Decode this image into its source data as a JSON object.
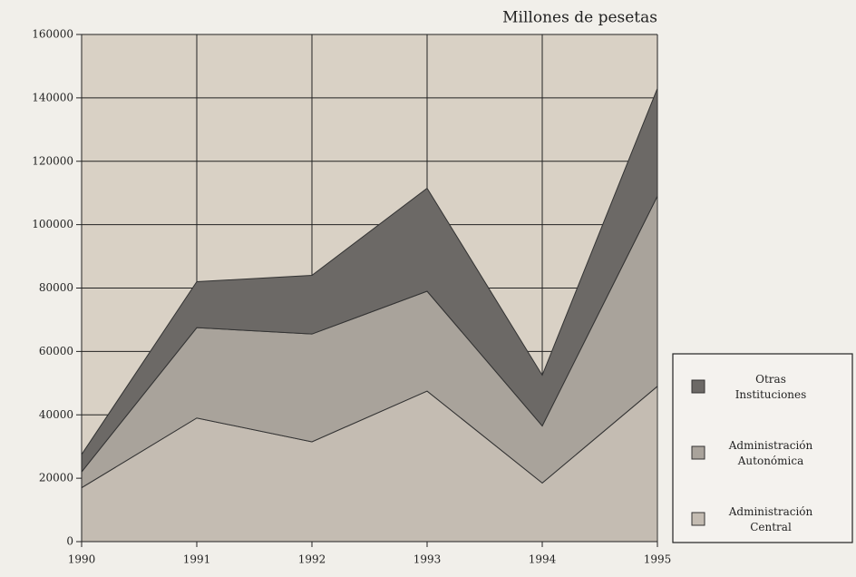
{
  "chart_data": {
    "type": "stacked_area",
    "title": "Millones de pesetas",
    "x": [
      1990,
      1991,
      1992,
      1993,
      1994,
      1995
    ],
    "xlim": [
      1990,
      1995
    ],
    "xticks": [
      1990,
      1991,
      1992,
      1993,
      1994,
      1995
    ],
    "ylim": [
      0,
      160000
    ],
    "yticks": [
      0,
      20000,
      40000,
      60000,
      80000,
      100000,
      120000,
      140000,
      160000
    ],
    "grid": true,
    "legend": "right",
    "series": [
      {
        "name": "Administración Central",
        "color": "#c4bcb2",
        "values": [
          17000,
          39000,
          31500,
          47500,
          18500,
          49000
        ]
      },
      {
        "name": "Administración Autonómica",
        "color": "#a9a39b",
        "values": [
          5000,
          28500,
          34000,
          31500,
          18000,
          60000
        ]
      },
      {
        "name": "Otras Instituciones",
        "color": "#6c6966",
        "values": [
          5500,
          14500,
          18500,
          32500,
          16000,
          34000
        ]
      }
    ]
  }
}
